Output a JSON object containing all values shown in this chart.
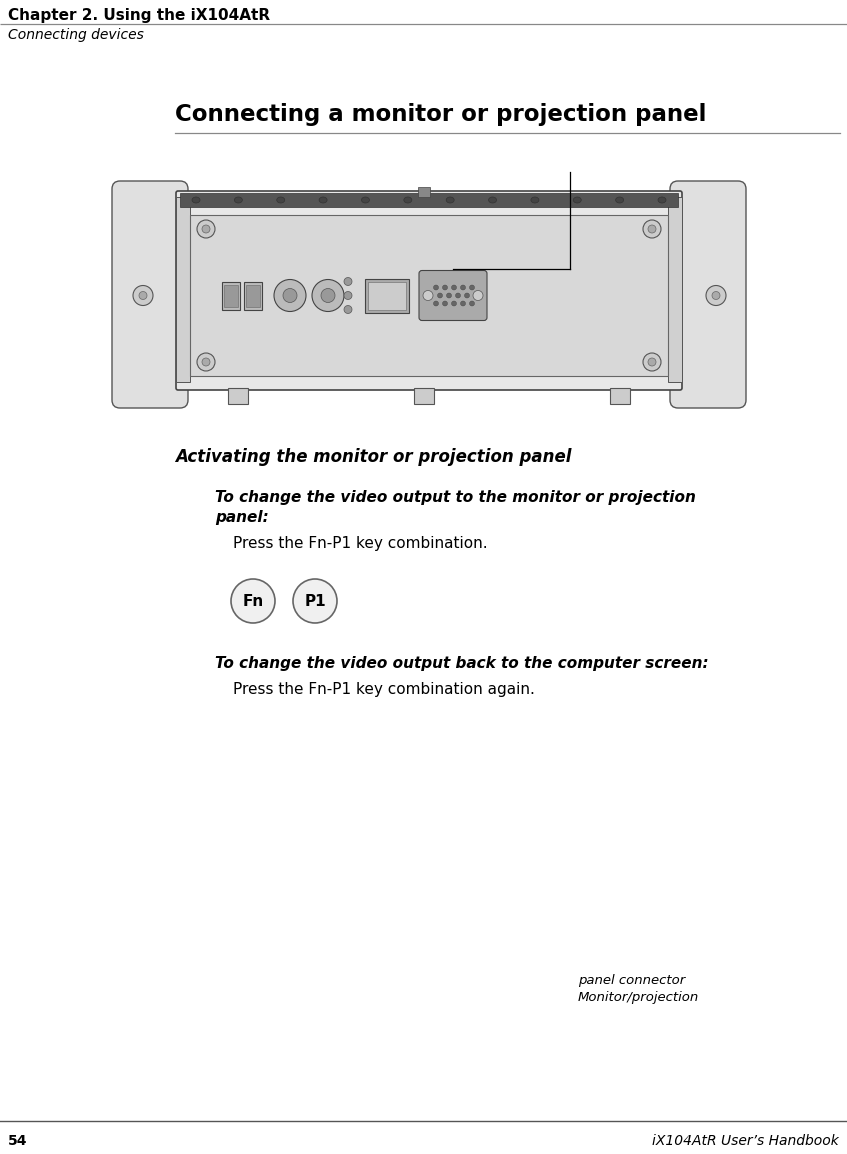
{
  "bg_color": "#ffffff",
  "header_chapter": "Chapter 2. Using the iX104AtR",
  "header_section": "Connecting devices",
  "footer_page": "54",
  "footer_right": "iX104AtR User’s Handbook",
  "section_title": "Connecting a monitor or projection panel",
  "subsection_title": "Activating the monitor or projection panel",
  "bold_heading1_line1": "To change the video output to the monitor or projection",
  "bold_heading1_line2": "panel:",
  "body_text1": "Press the Fn-P1 key combination.",
  "bold_heading2": "To change the video output back to the computer screen:",
  "body_text2": "Press the Fn-P1 key combination again.",
  "annotation_text_line1": "Monitor/projection",
  "annotation_text_line2": "panel connector",
  "key1_label": "Fn",
  "key2_label": "P1"
}
